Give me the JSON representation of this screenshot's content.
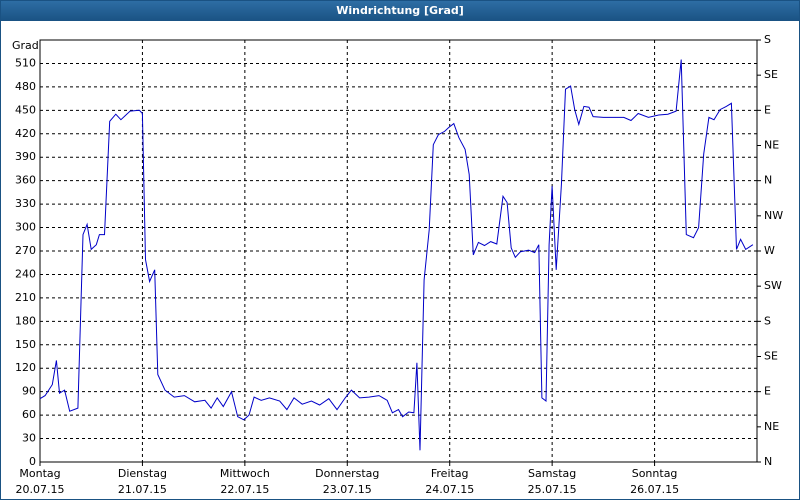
{
  "chart_data": {
    "type": "line",
    "title": "Windrichtung [Grad]",
    "y_label": "Grad",
    "x": [
      0,
      0.05,
      0.12,
      0.16,
      0.19,
      0.24,
      0.29,
      0.37,
      0.42,
      0.46,
      0.5,
      0.55,
      0.58,
      0.63,
      0.68,
      0.74,
      0.79,
      0.88,
      0.97,
      1.0,
      1.03,
      1.07,
      1.12,
      1.15,
      1.22,
      1.31,
      1.41,
      1.51,
      1.61,
      1.67,
      1.73,
      1.79,
      1.87,
      1.93,
      1.99,
      2.04,
      2.09,
      2.16,
      2.24,
      2.34,
      2.41,
      2.48,
      2.56,
      2.65,
      2.73,
      2.82,
      2.9,
      2.98,
      3.04,
      3.12,
      3.21,
      3.31,
      3.39,
      3.44,
      3.5,
      3.54,
      3.6,
      3.65,
      3.68,
      3.71,
      3.75,
      3.8,
      3.84,
      3.89,
      3.95,
      3.99,
      4.04,
      4.09,
      4.15,
      4.19,
      4.23,
      4.28,
      4.34,
      4.4,
      4.46,
      4.52,
      4.56,
      4.6,
      4.64,
      4.69,
      4.77,
      4.83,
      4.87,
      4.9,
      4.94,
      4.97,
      5.0,
      5.04,
      5.09,
      5.13,
      5.18,
      5.22,
      5.26,
      5.31,
      5.36,
      5.4,
      5.5,
      5.6,
      5.7,
      5.77,
      5.84,
      5.94,
      6.04,
      6.13,
      6.21,
      6.26,
      6.31,
      6.38,
      6.43,
      6.48,
      6.53,
      6.58,
      6.64,
      6.7,
      6.75,
      6.8,
      6.84,
      6.89,
      6.96
    ],
    "series": [
      {
        "color": "#0000c8",
        "values": [
          81,
          85,
          99,
          130,
          88,
          92,
          65,
          69,
          291,
          304,
          272,
          278,
          291,
          291,
          436,
          445,
          438,
          449,
          450,
          446,
          259,
          231,
          246,
          112,
          92,
          83,
          85,
          77,
          79,
          69,
          82,
          71,
          90,
          58,
          54,
          60,
          83,
          79,
          82,
          78,
          67,
          82,
          74,
          78,
          73,
          81,
          67,
          82,
          92,
          82,
          83,
          85,
          79,
          63,
          67,
          58,
          64,
          63,
          127,
          15,
          233,
          297,
          406,
          419,
          423,
          428,
          433,
          415,
          400,
          368,
          265,
          281,
          277,
          282,
          279,
          340,
          332,
          274,
          262,
          269,
          271,
          268,
          278,
          82,
          78,
          278,
          353,
          246,
          355,
          477,
          481,
          451,
          432,
          455,
          454,
          442,
          441,
          441,
          441,
          437,
          446,
          441,
          444,
          445,
          449,
          515,
          291,
          287,
          300,
          394,
          441,
          438,
          451,
          455,
          459,
          272,
          285,
          272,
          278
        ]
      }
    ],
    "xlim": [
      0,
      7
    ],
    "xticks": [
      {
        "value": 0,
        "label": "Montag"
      },
      {
        "value": 1,
        "label": "Dienstag"
      },
      {
        "value": 2,
        "label": "Mittwoch"
      },
      {
        "value": 3,
        "label": "Donnerstag"
      },
      {
        "value": 4,
        "label": "Freitag"
      },
      {
        "value": 5,
        "label": "Samstag"
      },
      {
        "value": 6,
        "label": "Sonntag"
      }
    ],
    "xtick_dates": [
      "20.07.15",
      "21.07.15",
      "22.07.15",
      "23.07.15",
      "24.07.15",
      "25.07.15",
      "26.07.15"
    ],
    "ylim": [
      0,
      540
    ],
    "yticks": [
      0,
      30,
      60,
      90,
      120,
      150,
      180,
      210,
      240,
      270,
      300,
      330,
      360,
      390,
      420,
      450,
      480,
      510
    ],
    "y2lim": [
      0,
      540
    ],
    "y2ticks": [
      {
        "value": 0,
        "label": "N"
      },
      {
        "value": 45,
        "label": "NE"
      },
      {
        "value": 90,
        "label": "E"
      },
      {
        "value": 135,
        "label": "SE"
      },
      {
        "value": 180,
        "label": "S"
      },
      {
        "value": 225,
        "label": "SW"
      },
      {
        "value": 270,
        "label": "W"
      },
      {
        "value": 315,
        "label": "NW"
      },
      {
        "value": 360,
        "label": "N"
      },
      {
        "value": 405,
        "label": "NE"
      },
      {
        "value": 450,
        "label": "E"
      },
      {
        "value": 495,
        "label": "SE"
      },
      {
        "value": 540,
        "label": "S"
      }
    ],
    "grid": true
  }
}
